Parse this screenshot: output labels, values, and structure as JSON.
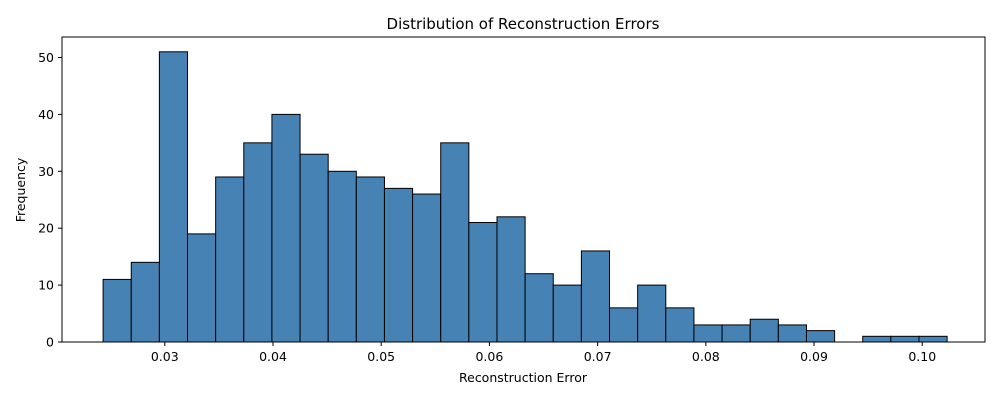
{
  "chart_data": {
    "type": "bar",
    "title": "Distribution of Reconstruction Errors",
    "xlabel": "Reconstruction Error",
    "ylabel": "Frequency",
    "bin_start": 0.0243,
    "bin_width": 0.0026,
    "values": [
      11,
      14,
      51,
      19,
      29,
      35,
      40,
      33,
      30,
      29,
      27,
      26,
      35,
      21,
      22,
      12,
      10,
      16,
      6,
      10,
      6,
      3,
      3,
      4,
      3,
      2,
      0,
      1,
      1,
      1
    ],
    "xlim": [
      0.0205,
      0.1058
    ],
    "ylim": [
      0,
      53.6
    ],
    "xticks": [
      "0.03",
      "0.04",
      "0.05",
      "0.06",
      "0.07",
      "0.08",
      "0.09",
      "0.10"
    ],
    "xtick_values": [
      0.03,
      0.04,
      0.05,
      0.06,
      0.07,
      0.08,
      0.09,
      0.1
    ],
    "yticks": [
      0,
      10,
      20,
      30,
      40,
      50
    ],
    "grid": false,
    "legend": "none",
    "colors": {
      "bar_fill": "#4682b4",
      "bar_edge": "#000000"
    }
  }
}
